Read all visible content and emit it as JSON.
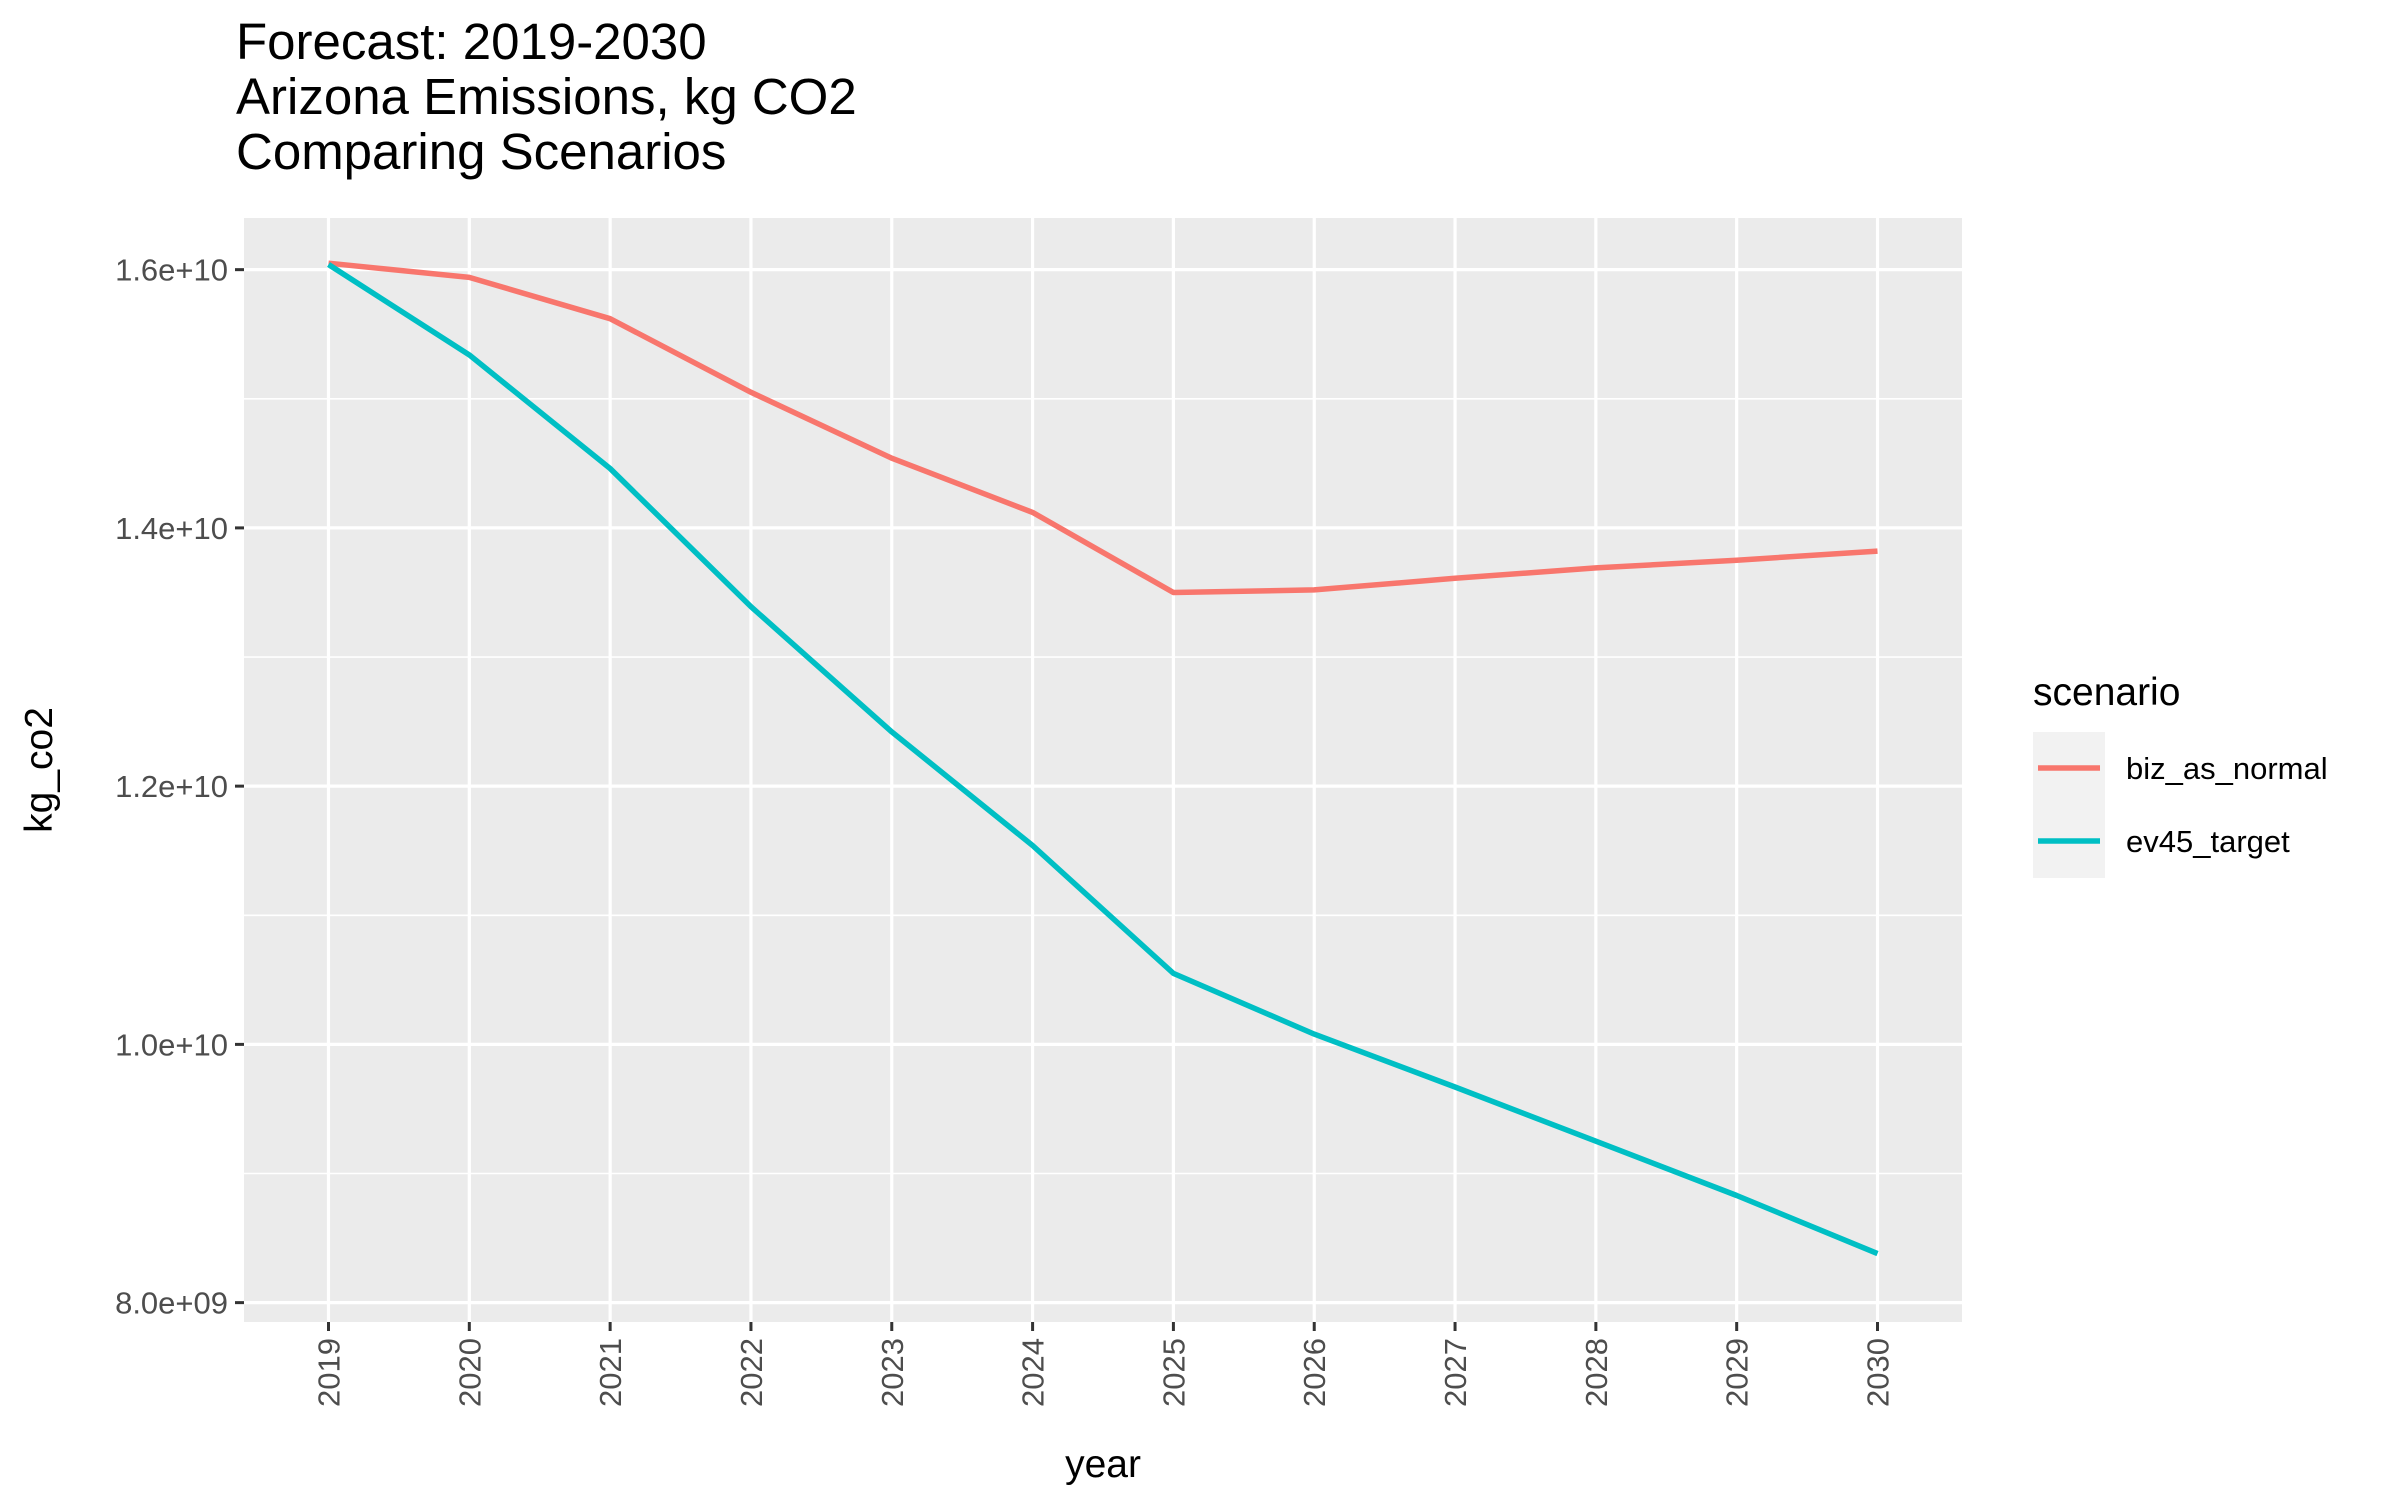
{
  "title_lines": [
    "Forecast: 2019-2030",
    "Arizona Emissions, kg CO2",
    "Comparing Scenarios"
  ],
  "chart_data": {
    "type": "line",
    "title": "Forecast: 2019-2030\nArizona Emissions, kg CO2\nComparing Scenarios",
    "xlabel": "year",
    "ylabel": "kg_co2",
    "x": [
      2019,
      2020,
      2021,
      2022,
      2023,
      2024,
      2025,
      2026,
      2027,
      2028,
      2029,
      2030
    ],
    "x_tick_labels": [
      "2019",
      "2020",
      "2021",
      "2022",
      "2023",
      "2024",
      "2025",
      "2026",
      "2027",
      "2028",
      "2029",
      "2030"
    ],
    "y_ticks": [
      8000000000,
      10000000000,
      12000000000,
      14000000000,
      16000000000
    ],
    "y_tick_labels": [
      "8.0e+09",
      "1.0e+10",
      "1.2e+10",
      "1.4e+10",
      "1.6e+10"
    ],
    "ylim": [
      7850000000,
      16400000000
    ],
    "grid": true,
    "legend": {
      "title": "scenario",
      "position": "right"
    },
    "series": [
      {
        "name": "biz_as_normal",
        "color": "#F8766D",
        "values": [
          16050000000,
          15940000000,
          15620000000,
          15050000000,
          14540000000,
          14120000000,
          13500000000,
          13520000000,
          13610000000,
          13690000000,
          13750000000,
          13820000000
        ]
      },
      {
        "name": "ev45_target",
        "color": "#00BFC4",
        "values": [
          16040000000,
          15340000000,
          14460000000,
          13390000000,
          12420000000,
          11540000000,
          10550000000,
          10080000000,
          9670000000,
          9250000000,
          8830000000,
          8380000000
        ]
      }
    ]
  }
}
